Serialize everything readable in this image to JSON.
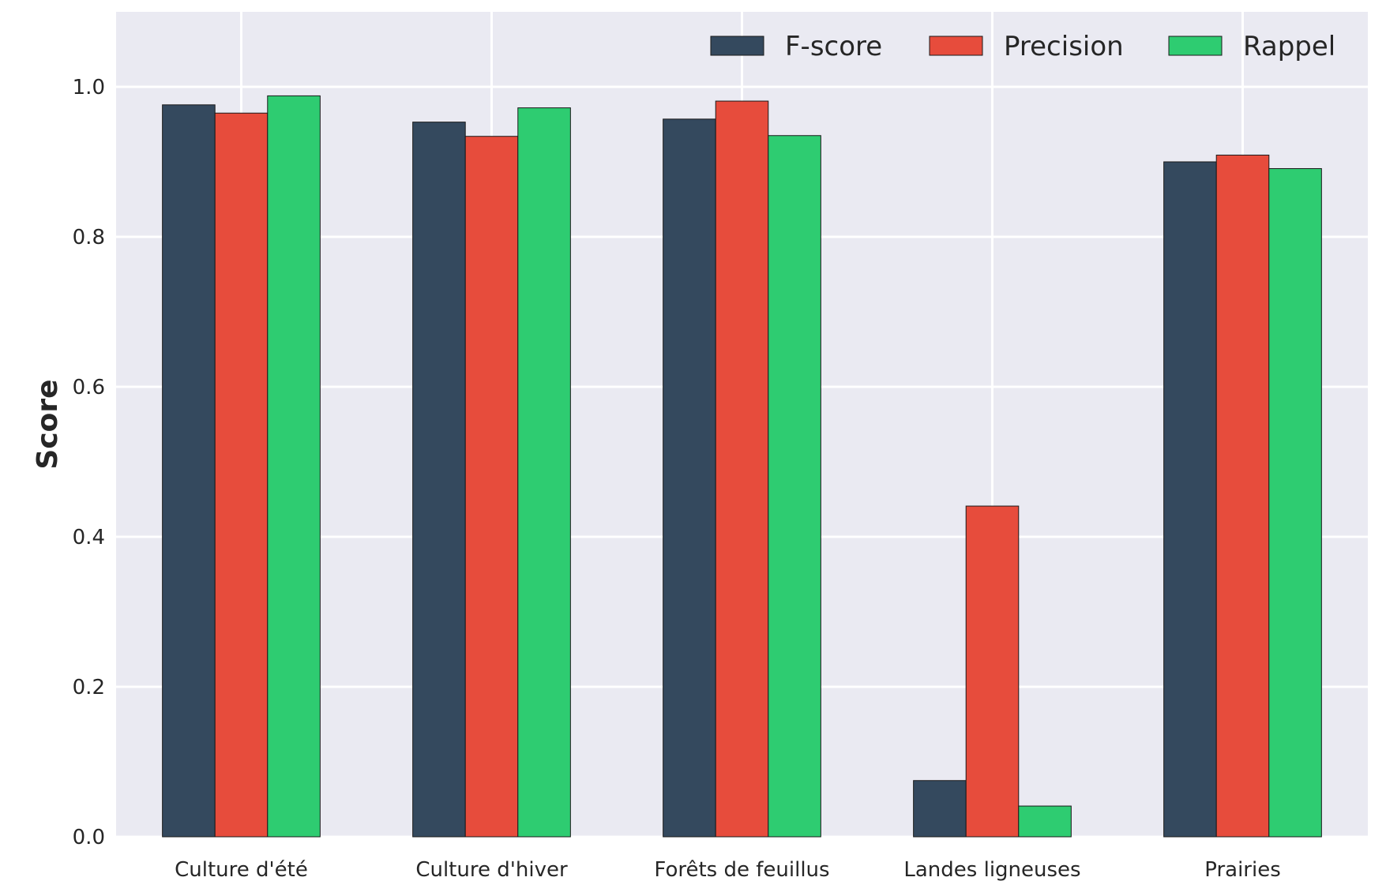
{
  "chart_data": {
    "type": "bar",
    "categories": [
      "Culture d'été",
      "Culture d'hiver",
      "Forêts de feuillus",
      "Landes ligneuses",
      "Prairies"
    ],
    "series": [
      {
        "name": "F-score",
        "color": "#34495e",
        "values": [
          0.976,
          0.953,
          0.957,
          0.075,
          0.9
        ]
      },
      {
        "name": "Precision",
        "color": "#e74c3c",
        "values": [
          0.965,
          0.934,
          0.981,
          0.441,
          0.909
        ]
      },
      {
        "name": "Rappel",
        "color": "#2ecc71",
        "values": [
          0.988,
          0.972,
          0.935,
          0.041,
          0.891
        ]
      }
    ],
    "ylabel": "Score",
    "xlabel": "",
    "ylim": [
      0,
      1.1
    ],
    "yticks": [
      "0.0",
      "0.2",
      "0.4",
      "0.6",
      "0.8",
      "1.0"
    ],
    "grid": true,
    "legend_position": "top-right",
    "background": "#eaeaf2"
  }
}
